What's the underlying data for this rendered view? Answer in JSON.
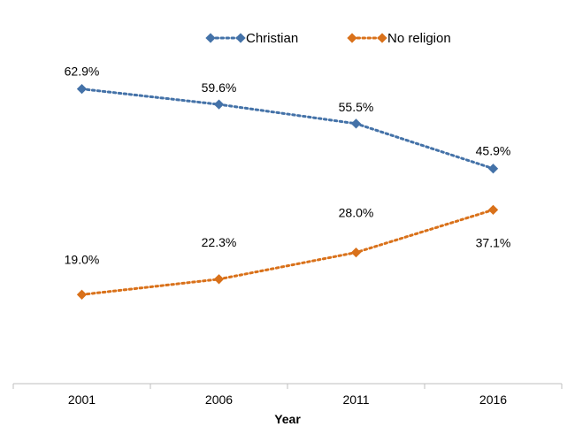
{
  "chart_data": {
    "type": "line",
    "title": "",
    "xlabel": "Year",
    "ylabel": "",
    "categories": [
      "2001",
      "2006",
      "2011",
      "2016"
    ],
    "ylim": [
      0,
      70
    ],
    "grid": false,
    "legend_position": "top-center",
    "series": [
      {
        "name": "Christian",
        "color": "#4472a8",
        "values": [
          62.9,
          59.6,
          55.5,
          45.9
        ],
        "labels": [
          "62.9%",
          "59.6%",
          "55.5%",
          "45.9%"
        ]
      },
      {
        "name": "No religion",
        "color": "#d9711a",
        "values": [
          19.0,
          22.3,
          28.0,
          37.1
        ],
        "labels": [
          "19.0%",
          "22.3%",
          "28.0%",
          "37.1%"
        ]
      }
    ]
  }
}
